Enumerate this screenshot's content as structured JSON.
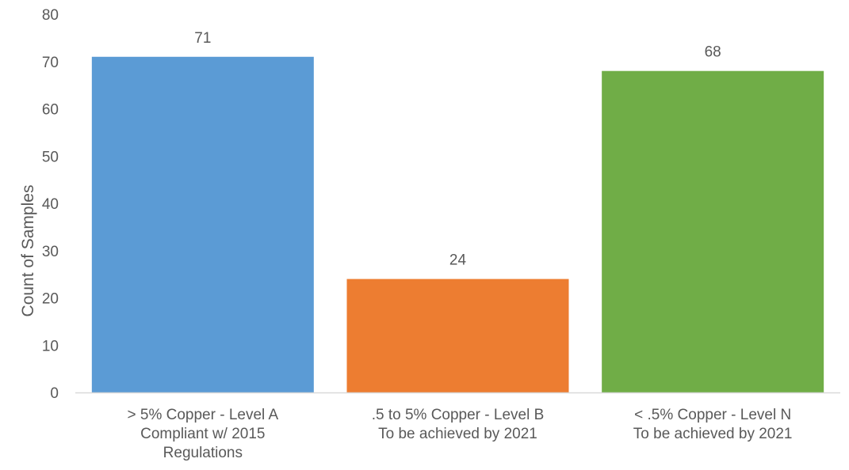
{
  "chart_data": {
    "type": "bar",
    "title": "",
    "xlabel": "",
    "ylabel": "Count of Samples",
    "ylim": [
      0,
      80
    ],
    "yticks": [
      0,
      10,
      20,
      30,
      40,
      50,
      60,
      70,
      80
    ],
    "grid": false,
    "legend": "none",
    "categories": [
      [
        "> 5% Copper - Level A",
        "Compliant w/ 2015",
        "Regulations"
      ],
      [
        ".5 to 5% Copper - Level B",
        "To be achieved by 2021"
      ],
      [
        "< .5% Copper - Level N",
        "To be achieved by 2021"
      ]
    ],
    "values": [
      71,
      24,
      68
    ],
    "colors": [
      "#5B9BD5",
      "#ED7D31",
      "#70AD47"
    ],
    "axis_color": "#D9D9D9"
  }
}
